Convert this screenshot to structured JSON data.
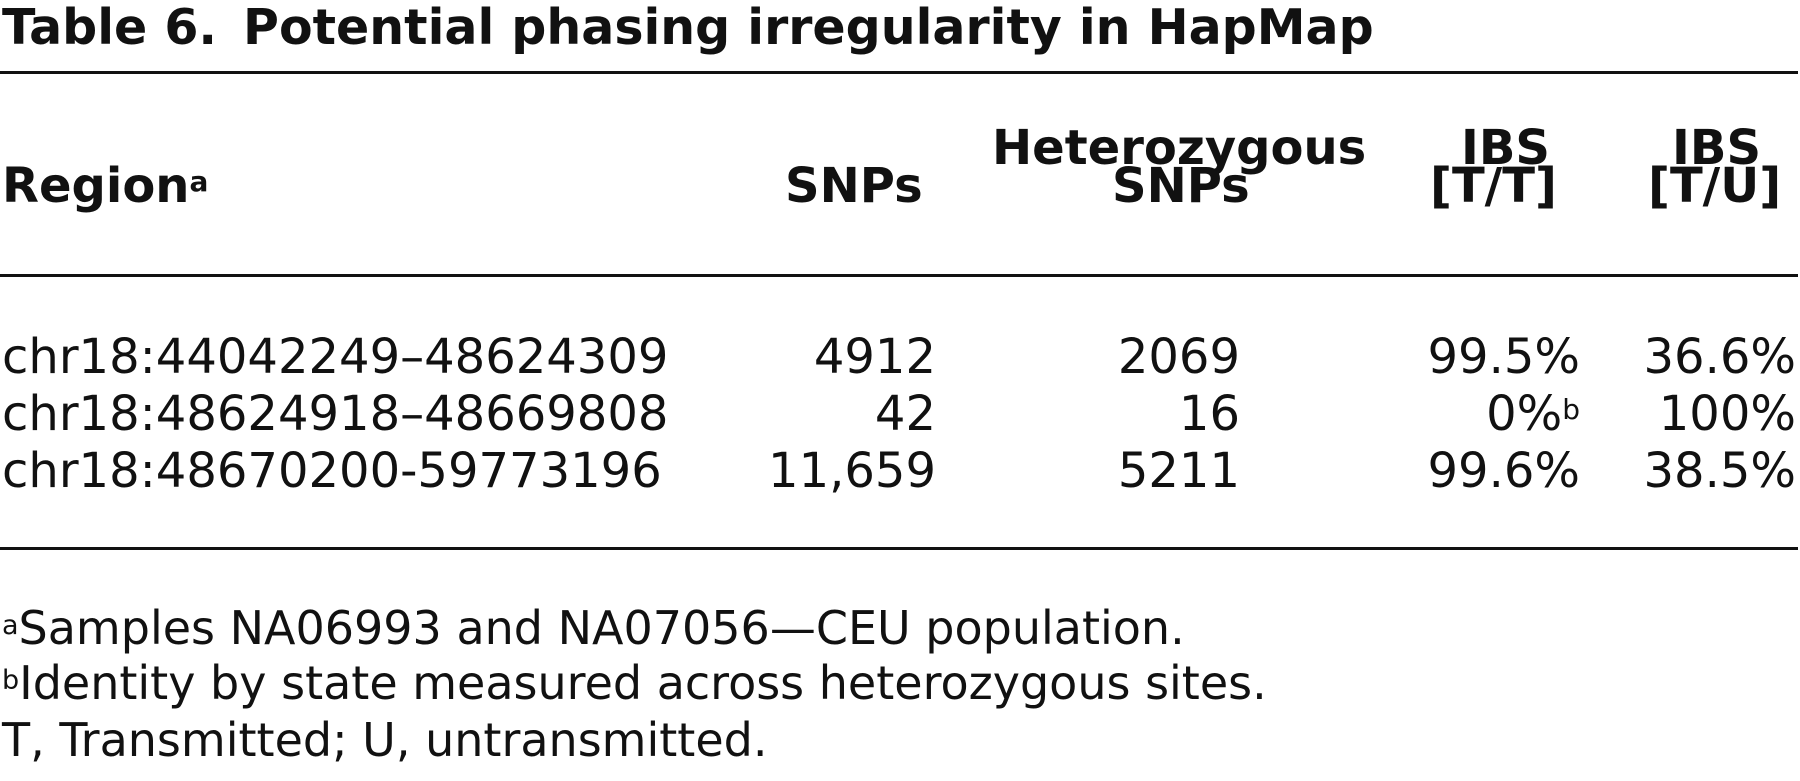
{
  "table": {
    "label": "Table 6.",
    "title": "Potential phasing irregularity in HapMap",
    "headers": {
      "region": "Region",
      "region_sup": "a",
      "snps": "SNPs",
      "het_line1": "Heterozygous",
      "het_line2": "SNPs",
      "ibs_tt_line1": "IBS",
      "ibs_tt_line2": "[T/T]",
      "ibs_tu_line1": "IBS",
      "ibs_tu_line2": "[T/U]"
    },
    "rows": [
      {
        "region": "chr18:44042249–48624309",
        "snps": "4912",
        "het": "2069",
        "ibs_tt": "99.5%",
        "ibs_tt_sup": "",
        "ibs_tu": "36.6%"
      },
      {
        "region": "chr18:48624918–48669808",
        "snps": "42",
        "het": "16",
        "ibs_tt": "0%",
        "ibs_tt_sup": "b",
        "ibs_tu": "100%"
      },
      {
        "region": "chr18:48670200-59773196",
        "snps": "11,659",
        "het": "5211",
        "ibs_tt": "99.6%",
        "ibs_tt_sup": "",
        "ibs_tu": "38.5%"
      }
    ],
    "footnotes": [
      {
        "mark": "a",
        "text": "Samples NA06993 and NA07056—CEU population."
      },
      {
        "mark": "b",
        "text": "Identity by state measured across heterozygous sites."
      },
      {
        "mark": "",
        "text": "T, Transmitted; U, untransmitted."
      }
    ]
  }
}
